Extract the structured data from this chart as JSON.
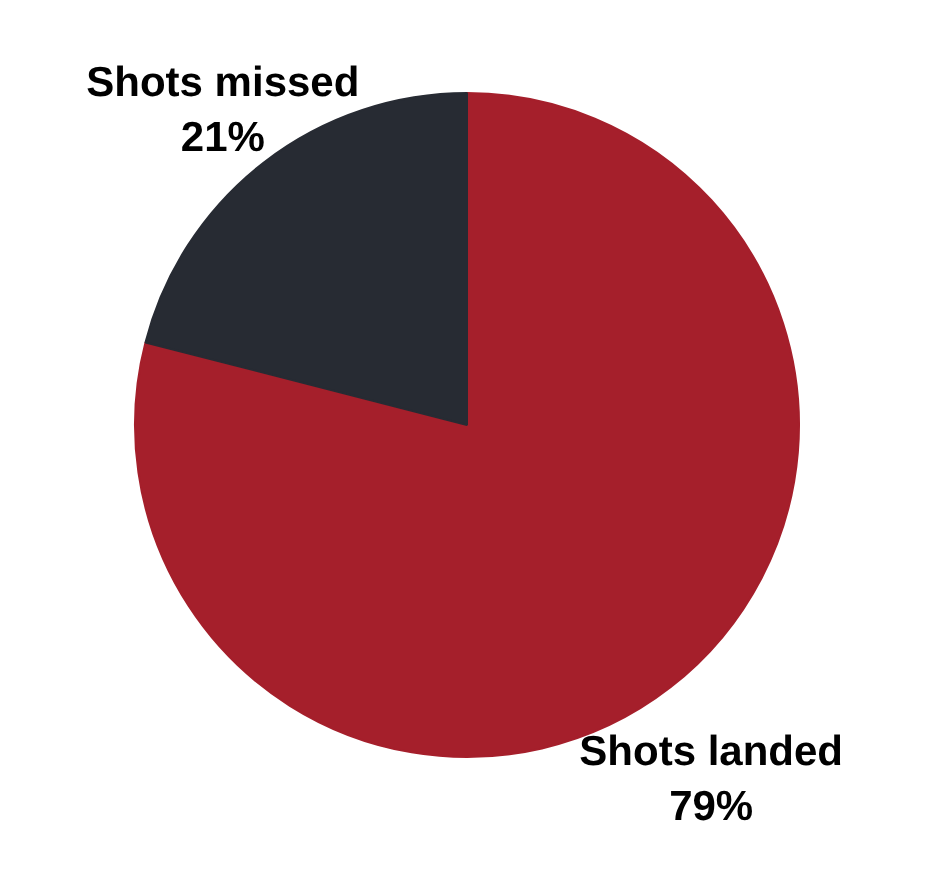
{
  "chart_data": {
    "type": "pie",
    "categories": [
      "Shots landed",
      "Shots missed"
    ],
    "values": [
      79,
      21
    ],
    "value_labels": [
      "79%",
      "21%"
    ],
    "colors": [
      "#a51f2b",
      "#272b33"
    ],
    "legend": false
  }
}
